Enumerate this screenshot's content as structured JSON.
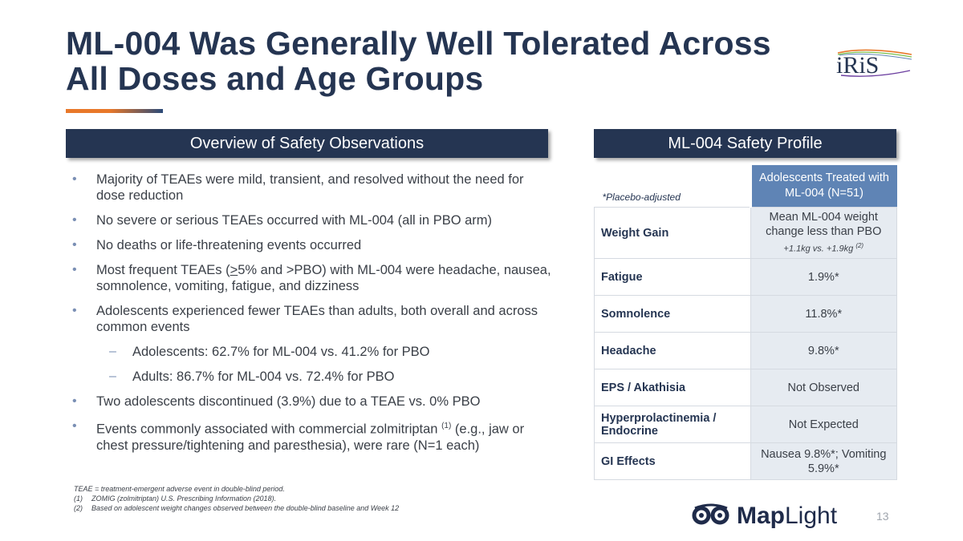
{
  "title": {
    "line1": "ML-004 Was Generally Well Tolerated Across",
    "line2": "All Doses and Age Groups"
  },
  "logos": {
    "iris": "iRiS",
    "maplight_bold": "Map",
    "maplight_light": "Light"
  },
  "left_section": {
    "header": "Overview of Safety Observations",
    "bullets": [
      "Majority of TEAEs were mild, transient, and resolved without the need for dose reduction",
      "No severe or serious TEAEs occurred with ML-004 (all in PBO arm)",
      "No deaths or life-threatening events occurred",
      {
        "pre": "Most frequent TEAEs (",
        "ul": ">",
        "post": "5% and >PBO) with ML-004 were headache, nausea, somnolence, vomiting, fatigue, and dizziness"
      },
      "Adolescents experienced fewer TEAEs than adults, both overall and across common events",
      "Adolescents: 62.7% for ML-004 vs. 41.2% for PBO",
      "Adults: 86.7% for ML-004 vs. 72.4% for PBO",
      "Two adolescents discontinued (3.9%) due to a TEAE vs. 0% PBO",
      {
        "pre": "Events commonly associated with commercial zolmitriptan ",
        "sup": "(1)",
        "post": " (e.g., jaw or chest pressure/tightening and paresthesia), were rare (N=1 each)"
      }
    ]
  },
  "footnotes": {
    "teae": "TEAE = treatment-emergent adverse event in double-blind period.",
    "n1_num": "(1)",
    "n1": "ZOMIG (zolmitriptan) U.S. Prescribing Information (2018).",
    "n2_num": "(2)",
    "n2": "Based on adolescent weight changes observed between the double-blind baseline and Week 12"
  },
  "right_section": {
    "header": "ML-004 Safety Profile",
    "placebo_note": "*Placebo-adjusted",
    "column_header": "Adolescents Treated with ML-004 (N=51)",
    "rows": [
      {
        "label": "Weight Gain",
        "value": "Mean ML-004 weight change less than PBO",
        "note": "+1.1kg vs. +1.9kg",
        "note_sup": "(2)"
      },
      {
        "label": "Fatigue",
        "value": "1.9%*"
      },
      {
        "label": "Somnolence",
        "value": "11.8%*"
      },
      {
        "label": "Headache",
        "value": "9.8%*"
      },
      {
        "label": "EPS / Akathisia",
        "value": "Not Observed"
      },
      {
        "label": "Hyperprolactinemia / Endocrine",
        "value": "Not Expected"
      },
      {
        "label": "GI Effects",
        "value": "Nausea 9.8%*; Vomiting 5.9%*"
      }
    ]
  },
  "page_number": "13",
  "colors": {
    "navy": "#253552",
    "header_blue": "#5f84b5",
    "cell_bg": "#e6ebf1",
    "accent_orange": "#e8782a"
  }
}
